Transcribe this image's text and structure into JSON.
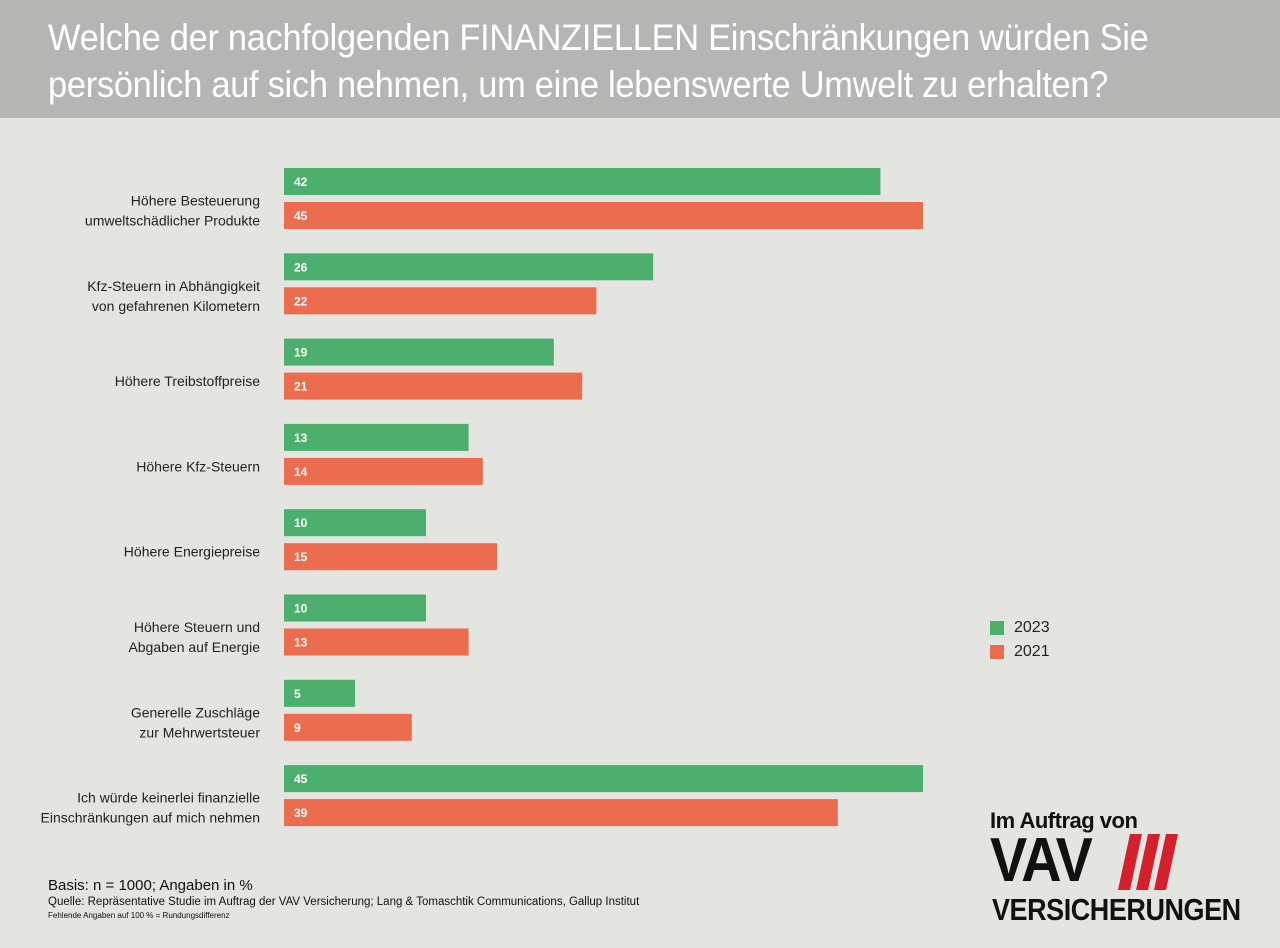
{
  "header": {
    "title": "Welche der nachfolgenden FINANZIELLEN Einschränkungen würden Sie\npersönlich auf sich nehmen, um eine lebenswerte Umwelt zu erhalten?"
  },
  "chart_data": {
    "type": "bar",
    "orientation": "horizontal",
    "categories": [
      "Höhere Besteuerung\numweltschädlicher Produkte",
      "Kfz-Steuern in Abhängigkeit\nvon gefahrenen Kilometern",
      "Höhere Treibstoffpreise",
      "Höhere Kfz-Steuern",
      "Höhere Energiepreise",
      "Höhere Steuern und\nAbgaben auf Energie",
      "Generelle Zuschläge\nzur Mehrwertsteuer",
      "Ich würde keinerlei finanzielle\nEinschränkungen auf mich nehmen"
    ],
    "series": [
      {
        "name": "2023",
        "color": "#4caf6e",
        "values": [
          42,
          26,
          19,
          13,
          10,
          10,
          5,
          45
        ]
      },
      {
        "name": "2021",
        "color": "#ec6c4f",
        "values": [
          45,
          22,
          21,
          14,
          15,
          13,
          9,
          39
        ]
      }
    ],
    "xlim": [
      0,
      45
    ],
    "data_labels": true,
    "legend_position": "right",
    "grid": false
  },
  "legend": {
    "items": [
      {
        "label": "2023",
        "color": "#4caf6e"
      },
      {
        "label": "2021",
        "color": "#ec6c4f"
      }
    ]
  },
  "footer": {
    "basis": "Basis: n = 1000; Angaben in %",
    "source": "Quelle: Repräsentative Studie im Auftrag der VAV Versicherung; Lang & Tomaschtik Communications, Gallup Institut",
    "note": "Fehlende Angaben auf 100 % = Rundungsdifferenz"
  },
  "logo": {
    "top_text": "Im Auftrag von",
    "main_text": "VAV",
    "bottom_text": "VERSICHERUNGEN",
    "accent_color": "#d4202a"
  }
}
